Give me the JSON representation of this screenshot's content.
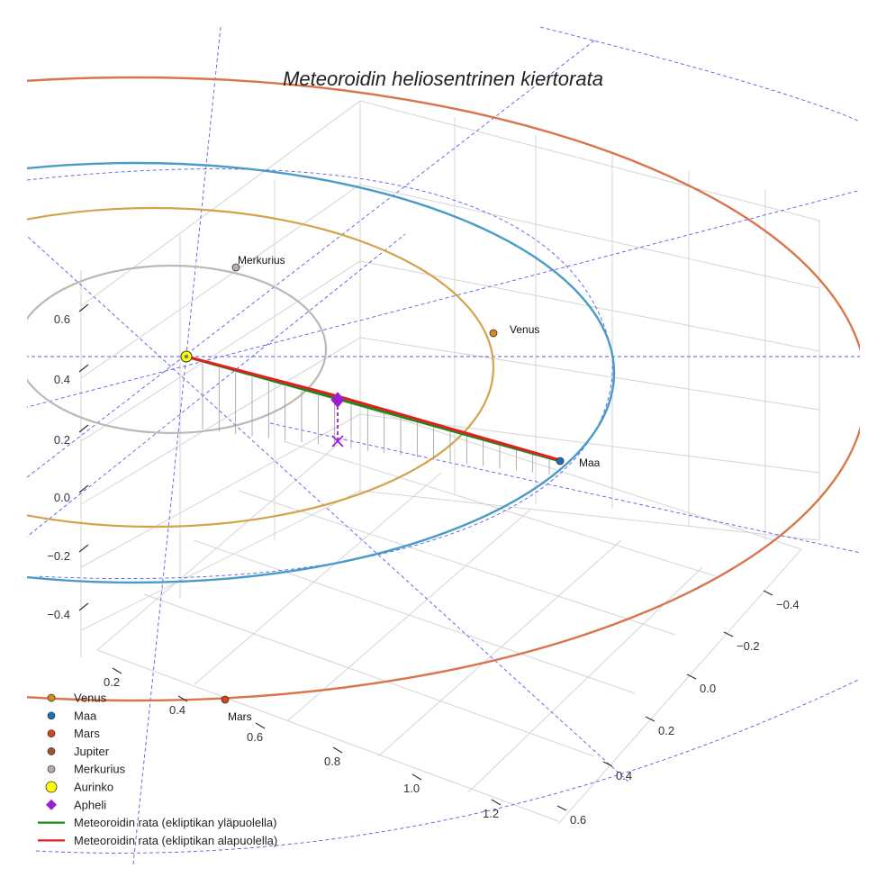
{
  "chart_data": {
    "type": "line-3d",
    "title": "Meteoroidin heliosentrinen kiertorata",
    "axes": {
      "z_ticks": [
        "0.6",
        "0.4",
        "0.2",
        "0.0",
        "−0.2",
        "−0.4"
      ],
      "x_ticks": [
        "0.2",
        "0.4",
        "0.6",
        "0.8",
        "1.0",
        "1.2"
      ],
      "y_ticks": [
        "−0.4",
        "−0.2",
        "0.0",
        "0.2",
        "0.4",
        "0.6"
      ],
      "grid": true
    },
    "planets": [
      {
        "name": "Merkurius",
        "label": "Merkurius",
        "color": "#b9aba8"
      },
      {
        "name": "Venus",
        "label": "Venus",
        "color": "#d98a1e"
      },
      {
        "name": "Maa",
        "label": "Maa",
        "color": "#1f6fb4"
      },
      {
        "name": "Mars",
        "label": "Mars",
        "color": "#d9441c"
      }
    ],
    "orbit_colors": {
      "Merkurius": "#bdb8b6",
      "Venus": "#d4a24a",
      "Maa": "#4a9bc8",
      "Mars": "#d9744b"
    },
    "sun": {
      "name": "Aurinko",
      "color": "#ffff00"
    },
    "aphelion": {
      "name": "Apheli",
      "color": "#9a1fd0"
    },
    "meteoroid_above_color": "#1a8a1a",
    "meteoroid_below_color": "#e02020",
    "legend": {
      "position": "bottom-left",
      "entries": [
        {
          "label": "Venus",
          "marker": "circle",
          "color": "#d98a1e"
        },
        {
          "label": "Maa",
          "marker": "circle",
          "color": "#1f6fb4"
        },
        {
          "label": "Mars",
          "marker": "circle",
          "color": "#d9441c"
        },
        {
          "label": "Jupiter",
          "marker": "circle",
          "color": "#a0522d"
        },
        {
          "label": "Merkurius",
          "marker": "circle",
          "color": "#b9aba8"
        },
        {
          "label": "Aurinko",
          "marker": "circle-big",
          "color": "#ffff00"
        },
        {
          "label": "Apheli",
          "marker": "diamond",
          "color": "#9a1fd0"
        },
        {
          "label": "Meteoroidin rata (ekliptikan yläpuolella)",
          "marker": "line",
          "color": "#1a8a1a"
        },
        {
          "label": "Meteoroidin rata (ekliptikan alapuolella)",
          "marker": "line",
          "color": "#e02020"
        }
      ]
    }
  }
}
